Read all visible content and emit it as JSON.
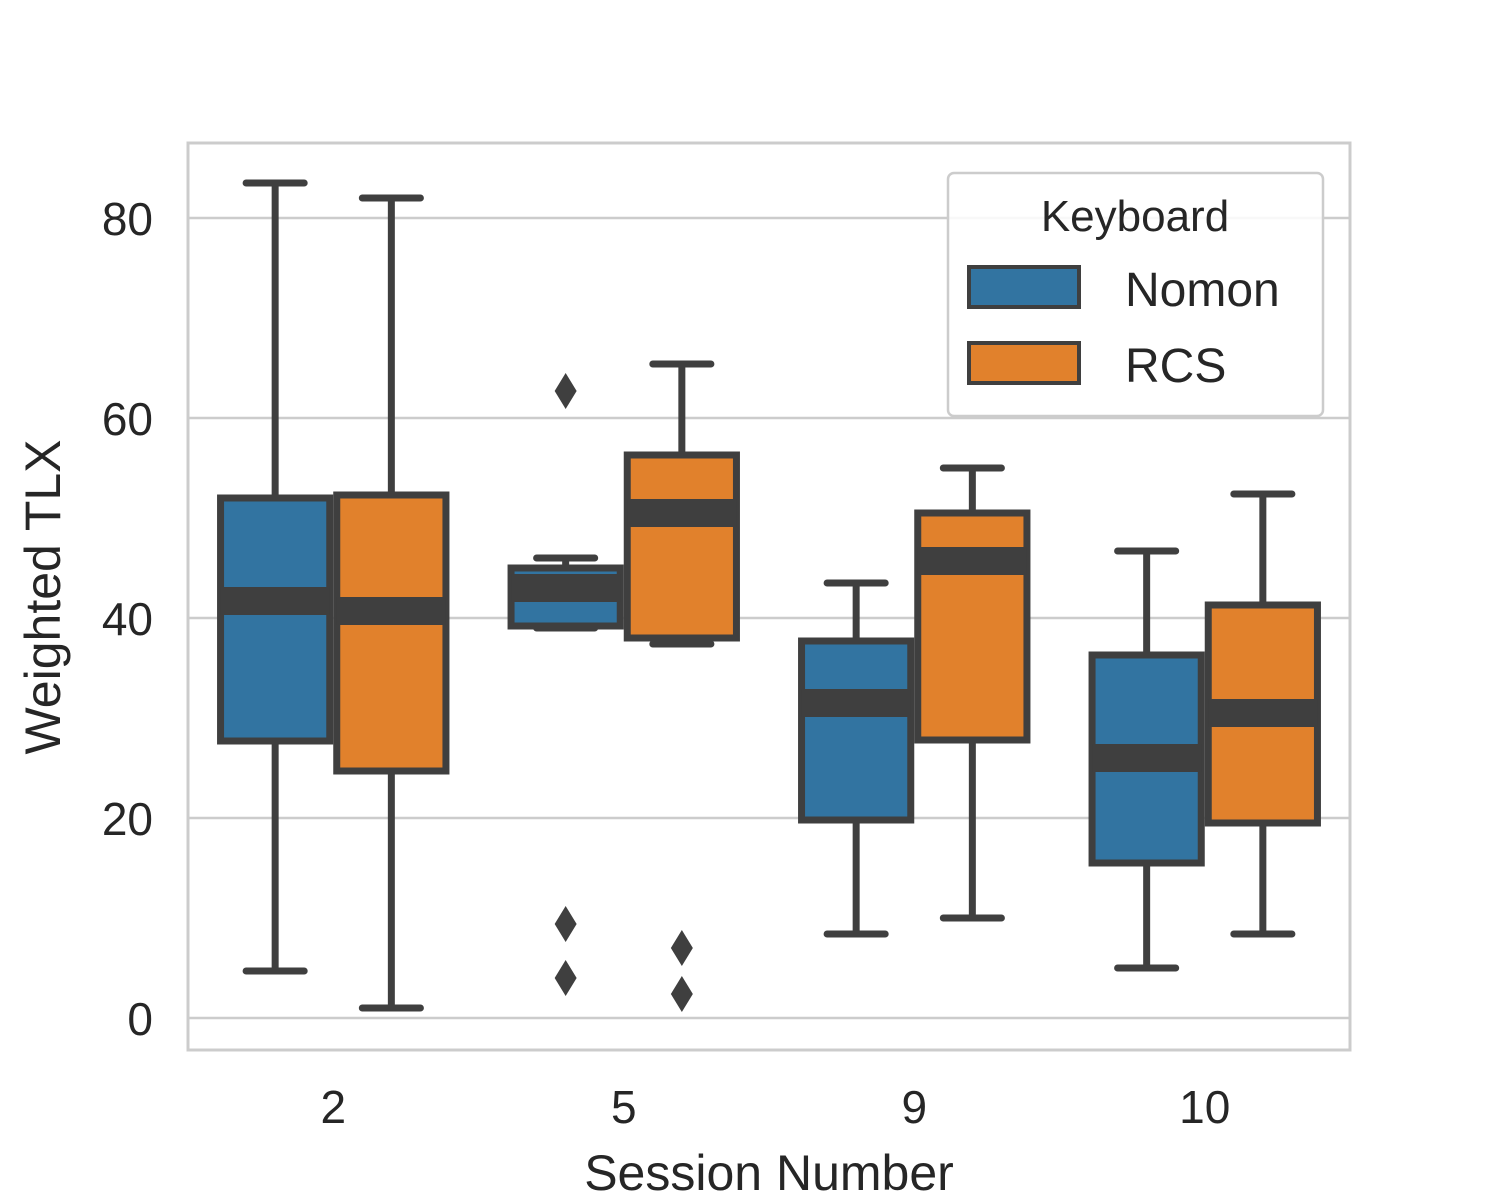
{
  "chart_data": {
    "type": "boxplot",
    "xlabel": "Session Number",
    "ylabel": "Weighted TLX",
    "ylim": [
      -3.2,
      87.5
    ],
    "yticks": [
      0,
      20,
      40,
      60,
      80
    ],
    "grid": "horizontal",
    "categories": [
      "2",
      "5",
      "9",
      "10"
    ],
    "legend": {
      "title": "Keyboard",
      "position": "top-right"
    },
    "series": [
      {
        "name": "Nomon",
        "color": "#3274a1",
        "boxes": [
          {
            "whisker_low": 4.7,
            "q1": 27.7,
            "median": 41.7,
            "q3": 52.0,
            "whisker_high": 83.5,
            "outliers": []
          },
          {
            "whisker_low": 39.0,
            "q1": 39.2,
            "median": 43.0,
            "q3": 45.0,
            "whisker_high": 46.0,
            "outliers": [
              62.7,
              9.4,
              4.0
            ]
          },
          {
            "whisker_low": 8.4,
            "q1": 19.8,
            "median": 31.5,
            "q3": 37.7,
            "whisker_high": 43.5,
            "outliers": []
          },
          {
            "whisker_low": 5.0,
            "q1": 15.5,
            "median": 26.0,
            "q3": 36.3,
            "whisker_high": 46.7,
            "outliers": []
          }
        ]
      },
      {
        "name": "RCS",
        "color": "#e1812c",
        "boxes": [
          {
            "whisker_low": 1.0,
            "q1": 24.7,
            "median": 40.7,
            "q3": 52.3,
            "whisker_high": 82.0,
            "outliers": []
          },
          {
            "whisker_low": 37.4,
            "q1": 38.0,
            "median": 50.5,
            "q3": 56.3,
            "whisker_high": 65.4,
            "outliers": [
              7.0,
              2.4
            ]
          },
          {
            "whisker_low": 10.0,
            "q1": 27.8,
            "median": 45.7,
            "q3": 50.5,
            "whisker_high": 55.0,
            "outliers": []
          },
          {
            "whisker_low": 8.4,
            "q1": 19.5,
            "median": 30.5,
            "q3": 41.3,
            "whisker_high": 52.4,
            "outliers": []
          }
        ]
      }
    ]
  }
}
